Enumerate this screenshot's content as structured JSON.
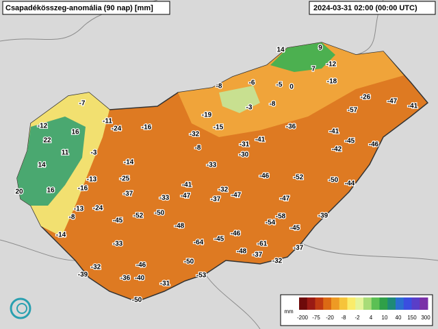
{
  "header": {
    "title": "Csapadékösszeg-anomália (90 nap) [mm]",
    "timestamp": "2024-03-31 02:00 (00:00 UTC)"
  },
  "stations": [
    14,
    9,
    7,
    -12,
    -8,
    -6,
    -5,
    0,
    -18,
    -7,
    -3,
    -8,
    -26,
    -47,
    -41,
    -57,
    -12,
    -11,
    -24,
    -16,
    -19,
    -15,
    -36,
    16,
    -32,
    -41,
    22,
    -31,
    -41,
    -45,
    -46,
    -8,
    -42,
    11,
    -3,
    -30,
    14,
    -14,
    -33,
    -46,
    -52,
    -50,
    -44,
    -13,
    -25,
    -41,
    -16,
    -32,
    20,
    16,
    -37,
    -33,
    -47,
    -47,
    -37,
    -47,
    -13,
    -24,
    -58,
    -8,
    -52,
    -50,
    -45,
    -54,
    -39,
    -48,
    -45,
    -14,
    -46,
    -45,
    -64,
    -33,
    -61,
    -37,
    -48,
    -37,
    -50,
    -32,
    -46,
    -32,
    -39,
    -36,
    -40,
    -53,
    -31,
    -50
  ],
  "legend": {
    "unit": "mm",
    "labels": [
      -200,
      -75,
      -20,
      -8,
      -2,
      4,
      10,
      40,
      150,
      300
    ]
  }
}
